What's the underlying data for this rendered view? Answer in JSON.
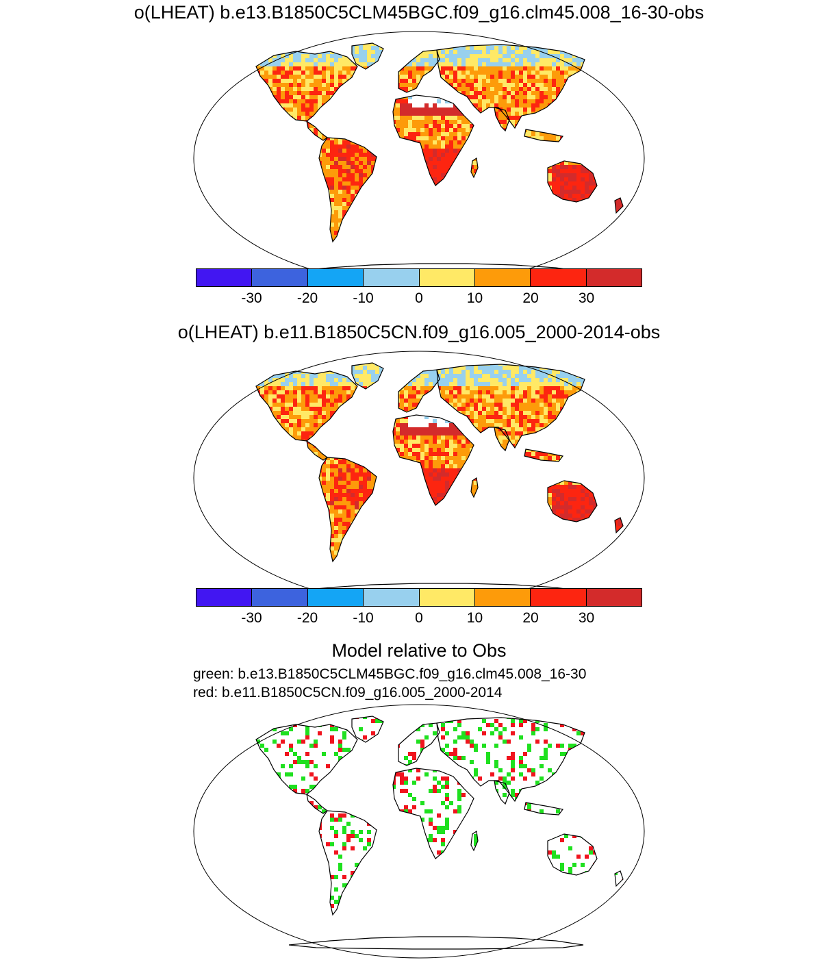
{
  "panel1": {
    "title": "o(LHEAT) b.e13.B1850C5CLM45BGC.f09_g16.clm45.008_16-30-obs"
  },
  "panel2": {
    "title": "o(LHEAT) b.e11.B1850C5CN.f09_g16.005_2000-2014-obs"
  },
  "panel3": {
    "title": "Model relative to Obs",
    "legend_green": "green: b.e13.B1850C5CLM45BGC.f09_g16.clm45.008_16-30",
    "legend_red": "red: b.e11.B1850C5CN.f09_g16.005_2000-2014"
  },
  "colorbar": {
    "colors": [
      "#4216f2",
      "#3d63de",
      "#14a5f5",
      "#98d0ee",
      "#ffe966",
      "#fd9b0a",
      "#fd2510",
      "#d32b2b"
    ],
    "tick_labels": [
      "-30",
      "-20",
      "-10",
      "0",
      "10",
      "20",
      "30"
    ]
  },
  "map_colors": {
    "land_outline": "#000000",
    "green": "#1fe01f",
    "red": "#f0141e"
  }
}
